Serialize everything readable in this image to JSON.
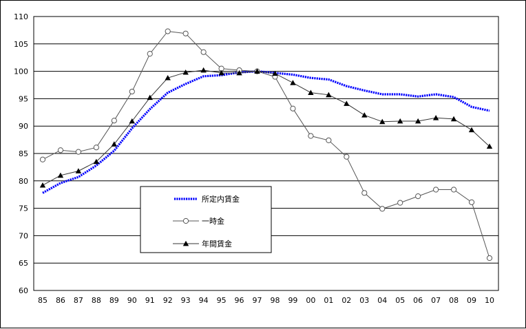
{
  "chart_data": {
    "type": "line",
    "title": "",
    "xlabel": "",
    "ylabel": "",
    "ylim": [
      60,
      110
    ],
    "yticks": [
      60,
      65,
      70,
      75,
      80,
      85,
      90,
      95,
      100,
      105,
      110
    ],
    "grid": "horizontal",
    "legend": "center-left",
    "categories": [
      "85",
      "86",
      "87",
      "88",
      "89",
      "90",
      "91",
      "92",
      "93",
      "94",
      "95",
      "96",
      "97",
      "98",
      "99",
      "00",
      "01",
      "02",
      "03",
      "04",
      "05",
      "06",
      "07",
      "08",
      "09",
      "10"
    ],
    "series": [
      {
        "name": "所定内賃金",
        "color": "#0000ff",
        "marker": "none",
        "values": [
          77.8,
          79.6,
          80.7,
          82.8,
          85.5,
          89.6,
          93.1,
          96.1,
          97.7,
          99.1,
          99.3,
          99.8,
          100.0,
          99.7,
          99.4,
          98.8,
          98.5,
          97.3,
          96.5,
          95.8,
          95.8,
          95.4,
          95.8,
          95.3,
          93.5,
          92.8
        ]
      },
      {
        "name": "一時金",
        "color": "#555555",
        "marker": "circle",
        "values": [
          83.9,
          85.6,
          85.3,
          86.1,
          91.0,
          96.3,
          103.2,
          107.3,
          106.9,
          103.5,
          100.5,
          100.2,
          100.0,
          99.0,
          93.2,
          88.2,
          87.4,
          84.4,
          77.8,
          74.9,
          76.0,
          77.2,
          78.4,
          78.4,
          76.1,
          65.9
        ]
      },
      {
        "name": "年間賃金",
        "color": "#333333",
        "marker": "triangle",
        "values": [
          79.2,
          81.0,
          81.8,
          83.5,
          86.7,
          90.9,
          95.2,
          98.8,
          99.8,
          100.2,
          99.7,
          99.7,
          100.0,
          99.6,
          97.9,
          96.1,
          95.7,
          94.1,
          92.0,
          90.8,
          90.9,
          90.9,
          91.5,
          91.3,
          89.3,
          86.3
        ]
      }
    ]
  }
}
